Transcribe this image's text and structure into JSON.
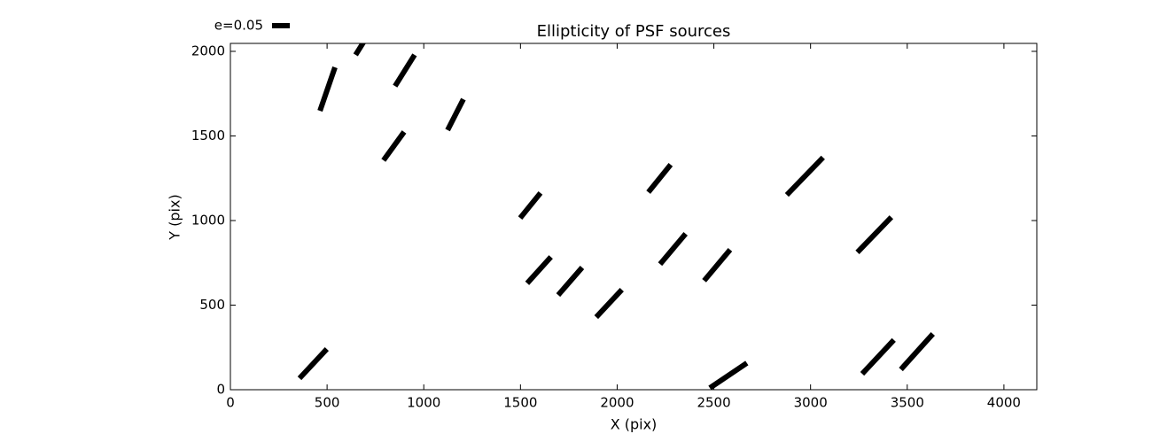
{
  "chart_data": {
    "type": "whisker",
    "title": "Ellipticity of PSF sources",
    "x_label": "X (pix)",
    "y_label": "Y (pix)",
    "xlim": [
      0,
      4170
    ],
    "ylim": [
      0,
      2047
    ],
    "xticks": [
      0,
      500,
      1000,
      1500,
      2000,
      2500,
      3000,
      3500,
      4000
    ],
    "yticks": [
      0,
      500,
      1000,
      1500,
      2000
    ],
    "color": "#000000",
    "key": {
      "value": 0.05,
      "label": "e=0.05"
    },
    "x": [
      428,
      502,
      696,
      902,
      845,
      1164,
      1551,
      1596,
      1757,
      1958,
      2219,
      2288,
      2517,
      2575,
      2971,
      3330,
      3349,
      3550
    ],
    "y": [
      154,
      1777,
      2068,
      1887,
      1440,
      1626,
      1089,
      707,
      641,
      510,
      1249,
      832,
      736,
      84,
      1262,
      916,
      194,
      225
    ],
    "e": [
      0.113,
      0.13,
      0.1,
      0.104,
      0.099,
      0.098,
      0.091,
      0.1,
      0.103,
      0.106,
      0.1,
      0.112,
      0.114,
      0.126,
      0.147,
      0.138,
      0.131,
      0.135
    ],
    "angle": [
      47,
      71,
      58,
      58,
      54,
      63,
      51,
      48,
      49,
      47,
      51,
      50,
      50,
      34,
      46,
      46,
      47,
      48
    ]
  }
}
